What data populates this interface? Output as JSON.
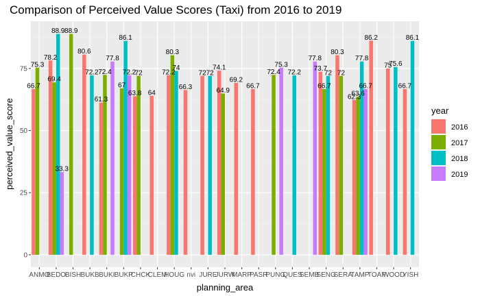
{
  "chart_data": {
    "type": "bar",
    "title": "Comparison of Perceived Value Scores (Taxi) from 2016 to 2019",
    "xlabel": "planning_area",
    "ylabel": "perceived_value_score",
    "ylim": [
      -5,
      94
    ],
    "yticks": [
      0,
      25,
      50,
      75
    ],
    "grid": true,
    "legend_placement": "right",
    "legend_title": "year",
    "series": [
      {
        "name": "2016",
        "color": "#F8766D"
      },
      {
        "name": "2017",
        "color": "#7CAE00"
      },
      {
        "name": "2018",
        "color": "#00BFC4"
      },
      {
        "name": "2019",
        "color": "#C77CFF"
      }
    ],
    "categories": [
      "ANMO",
      "BEDO",
      "BISH",
      "BUKB",
      "BUKI",
      "BUKP",
      "CHCK",
      "CLEM",
      "HOUG",
      "nvi",
      "JURE",
      "JURW",
      "MARP",
      "PASR",
      "PUNG",
      "QUES",
      "SEMB",
      "SENG",
      "SERA",
      "TAMP",
      "TOAP",
      "WOOD",
      "YISH"
    ],
    "bars": [
      {
        "cat": 0,
        "year": "2016",
        "value": 66.7
      },
      {
        "cat": 0,
        "year": "2017",
        "value": 75.3
      },
      {
        "cat": 1,
        "year": "2016",
        "value": 78.2
      },
      {
        "cat": 1,
        "year": "2017",
        "value": 69.4
      },
      {
        "cat": 1,
        "year": "2018",
        "value": 88.9
      },
      {
        "cat": 1,
        "year": "2019",
        "value": 33.3
      },
      {
        "cat": 2,
        "year": "2017",
        "value": 88.9
      },
      {
        "cat": 3,
        "year": "2016",
        "value": 80.6
      },
      {
        "cat": 3,
        "year": "2018",
        "value": 72.2
      },
      {
        "cat": 4,
        "year": "2016",
        "value": 61.3
      },
      {
        "cat": 4,
        "year": "2017",
        "value": 72.4
      },
      {
        "cat": 4,
        "year": "2019",
        "value": 77.8
      },
      {
        "cat": 5,
        "year": "2017",
        "value": 67
      },
      {
        "cat": 5,
        "year": "2018",
        "value": 86.1
      },
      {
        "cat": 5,
        "year": "2019",
        "value": 72.2
      },
      {
        "cat": 6,
        "year": "2016",
        "value": 63.8
      },
      {
        "cat": 6,
        "year": "2017",
        "value": 72
      },
      {
        "cat": 7,
        "year": "2016",
        "value": 64
      },
      {
        "cat": 8,
        "year": "2016",
        "value": 72.2
      },
      {
        "cat": 8,
        "year": "2017",
        "value": 80.3
      },
      {
        "cat": 8,
        "year": "2018",
        "value": 74
      },
      {
        "cat": 9,
        "year": "2016",
        "value": 66.3
      },
      {
        "cat": 10,
        "year": "2016",
        "value": 72
      },
      {
        "cat": 10,
        "year": "2018",
        "value": 72
      },
      {
        "cat": 11,
        "year": "2016",
        "value": 74.1
      },
      {
        "cat": 11,
        "year": "2017",
        "value": 64.9
      },
      {
        "cat": 12,
        "year": "2016",
        "value": 69.2
      },
      {
        "cat": 13,
        "year": "2016",
        "value": 66.7
      },
      {
        "cat": 14,
        "year": "2017",
        "value": 72.4
      },
      {
        "cat": 14,
        "year": "2019",
        "value": 75.3
      },
      {
        "cat": 15,
        "year": "2018",
        "value": 72.2
      },
      {
        "cat": 16,
        "year": "2019",
        "value": 77.8
      },
      {
        "cat": 17,
        "year": "2016",
        "value": 73.7
      },
      {
        "cat": 17,
        "year": "2017",
        "value": 66.7
      },
      {
        "cat": 17,
        "year": "2018",
        "value": 72
      },
      {
        "cat": 18,
        "year": "2016",
        "value": 80.3
      },
      {
        "cat": 18,
        "year": "2017",
        "value": 72
      },
      {
        "cat": 19,
        "year": "2016",
        "value": 62.3
      },
      {
        "cat": 19,
        "year": "2017",
        "value": 63.6
      },
      {
        "cat": 19,
        "year": "2018",
        "value": 77.8
      },
      {
        "cat": 19,
        "year": "2019",
        "value": 66.7
      },
      {
        "cat": 20,
        "year": "2016",
        "value": 86.2
      },
      {
        "cat": 21,
        "year": "2016",
        "value": 75
      },
      {
        "cat": 21,
        "year": "2018",
        "value": 75.6
      },
      {
        "cat": 22,
        "year": "2016",
        "value": 66.7
      },
      {
        "cat": 22,
        "year": "2018",
        "value": 86.1
      }
    ]
  }
}
